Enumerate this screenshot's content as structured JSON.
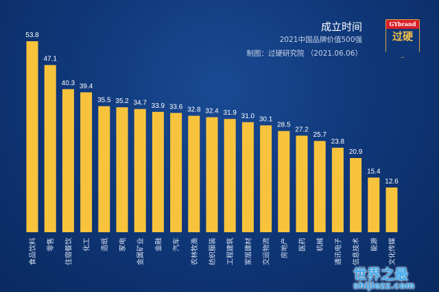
{
  "header": {
    "title": "成立时间",
    "subtitle": "2021中国品牌价值500强",
    "credit": "制图：过硬研究院 （2021.06.06）"
  },
  "logo": {
    "top": "GYbrand",
    "main": "过硬"
  },
  "watermark": {
    "line1": "世界之最",
    "line2": "shijiezz.com"
  },
  "colors": {
    "bar": "#f8c33c",
    "label": "#ffffff"
  },
  "chart_data": {
    "type": "bar",
    "title": "成立时间",
    "categories": [
      "食品饮料",
      "零售",
      "住宿餐饮",
      "化工",
      "造纸",
      "家电",
      "金属矿业",
      "金融",
      "汽车",
      "农林牧渔",
      "纺织服装",
      "工程建筑",
      "家居建材",
      "交运物流",
      "房地产",
      "医药",
      "机械",
      "通讯电子",
      "信息技术",
      "能源",
      "文化传媒"
    ],
    "values": [
      53.8,
      47.1,
      40.3,
      39.4,
      35.5,
      35.2,
      34.7,
      33.9,
      33.6,
      32.8,
      32.4,
      31.9,
      31.0,
      30.1,
      28.5,
      27.2,
      25.7,
      23.8,
      20.9,
      15.4,
      12.6
    ],
    "ylim": [
      0,
      55
    ],
    "grid": false,
    "xlabel": "",
    "ylabel": ""
  }
}
